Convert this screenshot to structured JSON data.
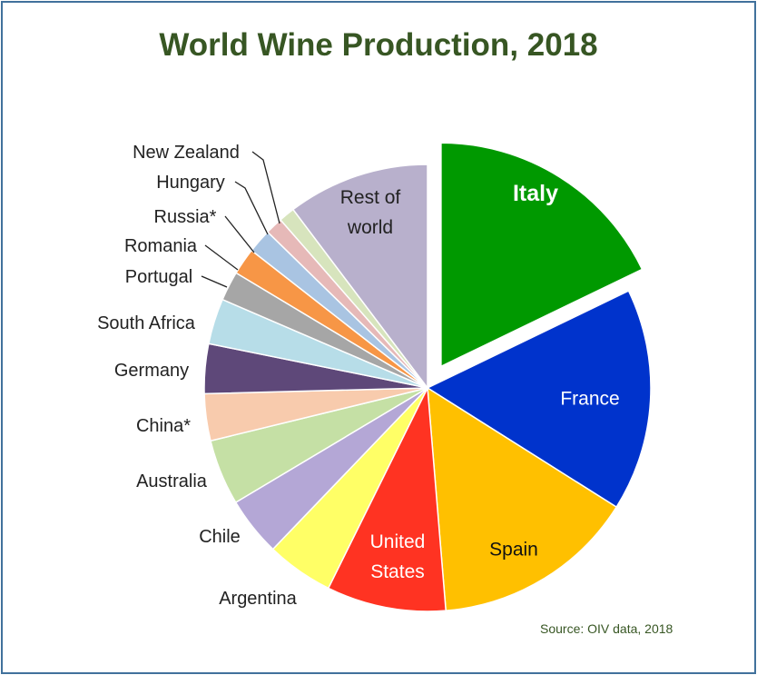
{
  "chart_data": {
    "type": "pie",
    "title": "World Wine Production, 2018",
    "source": "Source: OIV data, 2018",
    "exploded_slice": "Italy",
    "slices": [
      {
        "label": "Italy",
        "label_lines": [
          "Italy"
        ],
        "value": 18.4,
        "color": "#009900",
        "label_color": "#ffffff",
        "label_bold": true
      },
      {
        "label": "France",
        "label_lines": [
          "France"
        ],
        "value": 16.6,
        "color": "#0033cc",
        "label_color": "#ffffff"
      },
      {
        "label": "Spain",
        "label_lines": [
          "Spain"
        ],
        "value": 15.2,
        "color": "#ffc000",
        "label_color": "#111111"
      },
      {
        "label": "United States",
        "label_lines": [
          "United",
          "States"
        ],
        "value": 8.9,
        "color": "#ff3322",
        "label_color": "#ffffff"
      },
      {
        "label": "Argentina",
        "label_lines": [
          "Argentina"
        ],
        "value": 5.0,
        "color": "#ffff66",
        "label_color": "#222222"
      },
      {
        "label": "Chile",
        "label_lines": [
          "Chile"
        ],
        "value": 4.4,
        "color": "#b4a7d6",
        "label_color": "#222222"
      },
      {
        "label": "Australia",
        "label_lines": [
          "Australia"
        ],
        "value": 4.9,
        "color": "#c5e0a5",
        "label_color": "#222222"
      },
      {
        "label": "China*",
        "label_lines": [
          "China*"
        ],
        "value": 3.5,
        "color": "#f8cbad",
        "label_color": "#222222"
      },
      {
        "label": "Germany",
        "label_lines": [
          "Germany"
        ],
        "value": 3.7,
        "color": "#5e4879",
        "label_color": "#222222"
      },
      {
        "label": "South Africa",
        "label_lines": [
          "South Africa"
        ],
        "value": 3.4,
        "color": "#b7dde8",
        "label_color": "#222222"
      },
      {
        "label": "Portugal",
        "label_lines": [
          "Portugal"
        ],
        "value": 2.2,
        "color": "#a6a6a6",
        "label_color": "#222222"
      },
      {
        "label": "Romania",
        "label_lines": [
          "Romania"
        ],
        "value": 2.0,
        "color": "#f79646",
        "label_color": "#222222"
      },
      {
        "label": "Russia*",
        "label_lines": [
          "Russia*"
        ],
        "value": 1.8,
        "color": "#a9c4e2",
        "label_color": "#222222"
      },
      {
        "label": "Hungary",
        "label_lines": [
          "Hungary"
        ],
        "value": 1.3,
        "color": "#e6b9b8",
        "label_color": "#222222"
      },
      {
        "label": "New Zealand",
        "label_lines": [
          "New Zealand"
        ],
        "value": 1.2,
        "color": "#d7e4bd",
        "label_color": "#222222"
      },
      {
        "label": "Rest of world",
        "label_lines": [
          "Rest of",
          "world"
        ],
        "value": 10.6,
        "color": "#b8b0cc",
        "label_color": "#222222"
      }
    ]
  }
}
